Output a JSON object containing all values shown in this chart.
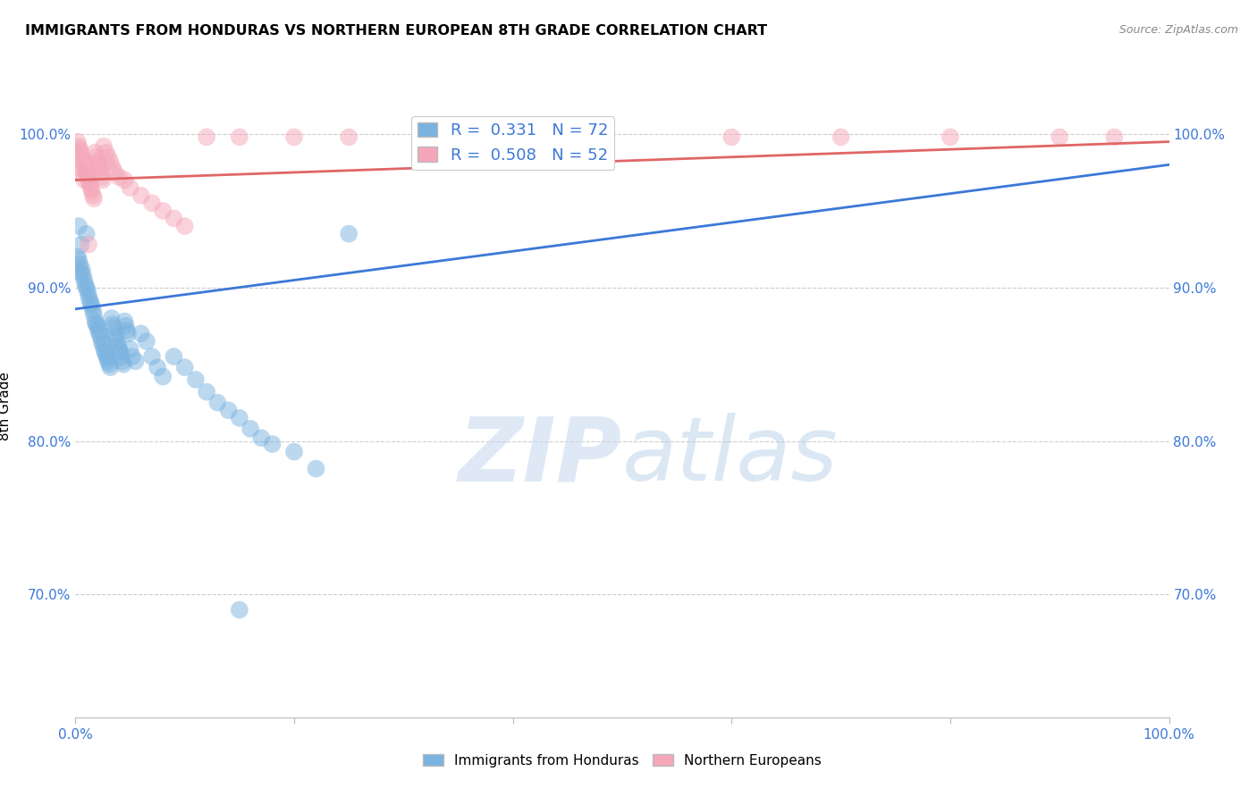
{
  "title": "IMMIGRANTS FROM HONDURAS VS NORTHERN EUROPEAN 8TH GRADE CORRELATION CHART",
  "source": "Source: ZipAtlas.com",
  "ylabel": "8th Grade",
  "xlim": [
    0.0,
    1.0
  ],
  "ylim": [
    0.62,
    1.025
  ],
  "yticks": [
    0.7,
    0.8,
    0.9,
    1.0
  ],
  "ytick_labels": [
    "70.0%",
    "80.0%",
    "90.0%",
    "100.0%"
  ],
  "xticks": [
    0.0,
    0.2,
    0.4,
    0.6,
    0.8,
    1.0
  ],
  "xtick_labels": [
    "0.0%",
    "",
    "",
    "",
    "",
    "100.0%"
  ],
  "legend_r1": "R =  0.331   N = 72",
  "legend_r2": "R =  0.508   N = 52",
  "blue_color": "#7ab3e0",
  "pink_color": "#f4a7b9",
  "blue_line_color": "#3c78d8",
  "pink_line_color": "#e06666",
  "blue_scatter_x": [
    0.002,
    0.003,
    0.004,
    0.005,
    0.005,
    0.006,
    0.007,
    0.008,
    0.009,
    0.01,
    0.01,
    0.011,
    0.012,
    0.013,
    0.014,
    0.015,
    0.016,
    0.017,
    0.018,
    0.019,
    0.02,
    0.021,
    0.022,
    0.023,
    0.024,
    0.025,
    0.026,
    0.027,
    0.028,
    0.029,
    0.03,
    0.031,
    0.032,
    0.033,
    0.034,
    0.035,
    0.036,
    0.037,
    0.038,
    0.039,
    0.04,
    0.041,
    0.042,
    0.043,
    0.044,
    0.045,
    0.046,
    0.047,
    0.048,
    0.05,
    0.052,
    0.055,
    0.06,
    0.065,
    0.07,
    0.075,
    0.08,
    0.09,
    0.1,
    0.11,
    0.12,
    0.13,
    0.14,
    0.15,
    0.16,
    0.17,
    0.18,
    0.2,
    0.22,
    0.25,
    0.003,
    0.15
  ],
  "blue_scatter_y": [
    0.92,
    0.918,
    0.915,
    0.91,
    0.928,
    0.912,
    0.908,
    0.905,
    0.902,
    0.9,
    0.935,
    0.898,
    0.895,
    0.892,
    0.89,
    0.888,
    0.885,
    0.882,
    0.878,
    0.876,
    0.875,
    0.872,
    0.87,
    0.868,
    0.865,
    0.863,
    0.86,
    0.858,
    0.856,
    0.854,
    0.852,
    0.85,
    0.848,
    0.88,
    0.876,
    0.874,
    0.87,
    0.868,
    0.865,
    0.862,
    0.86,
    0.858,
    0.855,
    0.852,
    0.85,
    0.878,
    0.875,
    0.872,
    0.87,
    0.86,
    0.855,
    0.852,
    0.87,
    0.865,
    0.855,
    0.848,
    0.842,
    0.855,
    0.848,
    0.84,
    0.832,
    0.825,
    0.82,
    0.815,
    0.808,
    0.802,
    0.798,
    0.793,
    0.782,
    0.935,
    0.94,
    0.69
  ],
  "pink_scatter_x": [
    0.002,
    0.003,
    0.004,
    0.005,
    0.006,
    0.007,
    0.008,
    0.009,
    0.01,
    0.011,
    0.012,
    0.013,
    0.014,
    0.015,
    0.016,
    0.017,
    0.018,
    0.019,
    0.02,
    0.021,
    0.022,
    0.023,
    0.024,
    0.025,
    0.026,
    0.028,
    0.03,
    0.032,
    0.034,
    0.036,
    0.04,
    0.045,
    0.05,
    0.06,
    0.07,
    0.08,
    0.09,
    0.1,
    0.12,
    0.15,
    0.2,
    0.25,
    0.4,
    0.6,
    0.7,
    0.8,
    0.9,
    0.95,
    0.002,
    0.005,
    0.008,
    0.012
  ],
  "pink_scatter_y": [
    0.995,
    0.992,
    0.99,
    0.988,
    0.985,
    0.983,
    0.98,
    0.978,
    0.975,
    0.973,
    0.97,
    0.968,
    0.965,
    0.963,
    0.96,
    0.958,
    0.988,
    0.985,
    0.982,
    0.98,
    0.978,
    0.975,
    0.972,
    0.97,
    0.992,
    0.988,
    0.985,
    0.982,
    0.978,
    0.975,
    0.972,
    0.97,
    0.965,
    0.96,
    0.955,
    0.95,
    0.945,
    0.94,
    0.998,
    0.998,
    0.998,
    0.998,
    0.998,
    0.998,
    0.998,
    0.998,
    0.998,
    0.998,
    0.978,
    0.975,
    0.97,
    0.928
  ],
  "blue_trend_x": [
    0.0,
    1.0
  ],
  "blue_trend_y": [
    0.886,
    0.98
  ],
  "pink_trend_x": [
    0.0,
    1.0
  ],
  "pink_trend_y": [
    0.97,
    0.995
  ]
}
